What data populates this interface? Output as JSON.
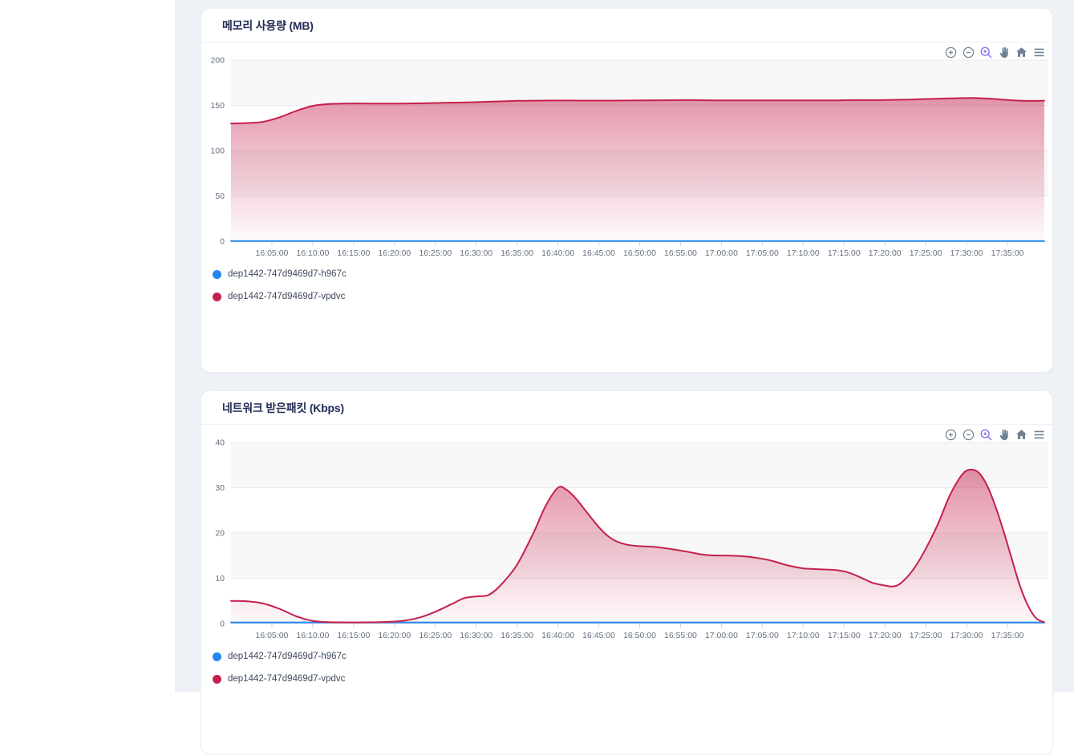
{
  "page": {
    "background": "#eef2f7",
    "left_panel_background": "#ffffff",
    "card_background": "#ffffff",
    "accent_selected_tool": "#8b6fe8",
    "toolbar_icon_color": "#6e8192"
  },
  "charts": [
    {
      "title": "메모리 사용량 (MB)",
      "toolbar_icons": [
        "zoom-in-icon",
        "zoom-out-icon",
        "selection-zoom-icon",
        "pan-icon",
        "home-icon",
        "menu-icon"
      ],
      "selected_tool": "selection-zoom",
      "chart_data": {
        "type": "area",
        "title": "메모리 사용량 (MB)",
        "xlabel": "",
        "ylabel": "",
        "x_unit": "minutes after 16:00:00",
        "x_range_minutes": [
          0,
          100
        ],
        "x_tick_minutes": [
          5,
          10,
          15,
          20,
          25,
          30,
          35,
          40,
          45,
          50,
          55,
          60,
          65,
          70,
          75,
          80,
          85,
          90,
          95
        ],
        "x_tick_labels": [
          "16:05:00",
          "16:10:00",
          "16:15:00",
          "16:20:00",
          "16:25:00",
          "16:30:00",
          "16:35:00",
          "16:40:00",
          "16:45:00",
          "16:50:00",
          "16:55:00",
          "17:00:00",
          "17:05:00",
          "17:10:00",
          "17:15:00",
          "17:20:00",
          "17:25:00",
          "17:30:00",
          "17:35:00"
        ],
        "ylim": [
          0,
          200
        ],
        "y_ticks": [
          0,
          50,
          100,
          150,
          200
        ],
        "grid_row_colors": [
          "#f8f8f8",
          "#ffffff"
        ],
        "gridline_color": "#e9eaed",
        "legend_position": "bottom-left",
        "series": [
          {
            "name": "dep1442-747d9469d7-h967c",
            "color": "#2287f0",
            "fill": false,
            "points": [
              [
                0,
                0.3
              ],
              [
                99.5,
                0.3
              ]
            ]
          },
          {
            "name": "dep1442-747d9469d7-vpdvc",
            "color": "#c5204c",
            "fill": true,
            "points": [
              [
                0,
                130
              ],
              [
                2,
                130.5
              ],
              [
                4,
                132
              ],
              [
                6,
                137
              ],
              [
                8,
                144
              ],
              [
                10,
                149.5
              ],
              [
                12,
                151.5
              ],
              [
                14,
                152
              ],
              [
                17,
                152
              ],
              [
                20,
                152
              ],
              [
                23,
                152.3
              ],
              [
                26,
                152.8
              ],
              [
                29,
                153.3
              ],
              [
                32,
                154.2
              ],
              [
                35,
                155
              ],
              [
                38,
                155.3
              ],
              [
                41,
                155.4
              ],
              [
                44,
                155.3
              ],
              [
                47,
                155.3
              ],
              [
                50,
                155.5
              ],
              [
                53,
                155.7
              ],
              [
                56,
                155.8
              ],
              [
                59,
                155.6
              ],
              [
                62,
                155.5
              ],
              [
                65,
                155.5
              ],
              [
                68,
                155.5
              ],
              [
                71,
                155.6
              ],
              [
                74,
                155.6
              ],
              [
                77,
                155.8
              ],
              [
                80,
                156
              ],
              [
                83,
                156.5
              ],
              [
                86,
                157.3
              ],
              [
                89,
                158
              ],
              [
                91,
                158.1
              ],
              [
                93,
                157.3
              ],
              [
                95,
                156
              ],
              [
                97,
                155
              ],
              [
                99.5,
                155.2
              ]
            ]
          }
        ]
      }
    },
    {
      "title": "네트워크 받은패킷 (Kbps)",
      "toolbar_icons": [
        "zoom-in-icon",
        "zoom-out-icon",
        "selection-zoom-icon",
        "pan-icon",
        "home-icon",
        "menu-icon"
      ],
      "selected_tool": "selection-zoom",
      "chart_data": {
        "type": "area",
        "title": "네트워크 받은패킷 (Kbps)",
        "xlabel": "",
        "ylabel": "",
        "x_unit": "minutes after 16:00:00",
        "x_range_minutes": [
          0,
          100
        ],
        "x_tick_minutes": [
          5,
          10,
          15,
          20,
          25,
          30,
          35,
          40,
          45,
          50,
          55,
          60,
          65,
          70,
          75,
          80,
          85,
          90,
          95
        ],
        "x_tick_labels": [
          "16:05:00",
          "16:10:00",
          "16:15:00",
          "16:20:00",
          "16:25:00",
          "16:30:00",
          "16:35:00",
          "16:40:00",
          "16:45:00",
          "16:50:00",
          "16:55:00",
          "17:00:00",
          "17:05:00",
          "17:10:00",
          "17:15:00",
          "17:20:00",
          "17:25:00",
          "17:30:00",
          "17:35:00"
        ],
        "ylim": [
          0,
          40
        ],
        "y_ticks": [
          0,
          10,
          20,
          30,
          40
        ],
        "grid_row_colors": [
          "#f8f8f8",
          "#ffffff"
        ],
        "gridline_color": "#e9eaed",
        "legend_position": "bottom-left",
        "series": [
          {
            "name": "dep1442-747d9469d7-h967c",
            "color": "#2287f0",
            "fill": false,
            "points": [
              [
                0,
                0.25
              ],
              [
                99.5,
                0.25
              ]
            ]
          },
          {
            "name": "dep1442-747d9469d7-vpdvc",
            "color": "#c5204c",
            "fill": true,
            "points": [
              [
                0,
                5
              ],
              [
                2,
                4.9
              ],
              [
                4,
                4.4
              ],
              [
                6,
                3.2
              ],
              [
                8,
                1.6
              ],
              [
                10,
                0.6
              ],
              [
                12,
                0.3
              ],
              [
                15,
                0.25
              ],
              [
                18,
                0.3
              ],
              [
                21,
                0.6
              ],
              [
                23,
                1.3
              ],
              [
                25,
                2.6
              ],
              [
                27,
                4.3
              ],
              [
                28.5,
                5.6
              ],
              [
                30,
                6
              ],
              [
                31.5,
                6.3
              ],
              [
                33,
                8.5
              ],
              [
                35,
                13
              ],
              [
                37,
                20
              ],
              [
                38.5,
                26
              ],
              [
                40,
                30
              ],
              [
                41,
                29.6
              ],
              [
                42,
                28
              ],
              [
                43,
                25.8
              ],
              [
                44,
                23.5
              ],
              [
                45,
                21.3
              ],
              [
                46,
                19.5
              ],
              [
                47,
                18.3
              ],
              [
                48.5,
                17.4
              ],
              [
                50,
                17.1
              ],
              [
                52,
                16.9
              ],
              [
                54,
                16.4
              ],
              [
                56,
                15.8
              ],
              [
                57.5,
                15.3
              ],
              [
                59,
                15.05
              ],
              [
                61,
                15
              ],
              [
                63,
                14.8
              ],
              [
                65,
                14.3
              ],
              [
                66.5,
                13.7
              ],
              [
                68,
                12.9
              ],
              [
                70,
                12.2
              ],
              [
                72,
                12
              ],
              [
                74,
                11.8
              ],
              [
                75.5,
                11.3
              ],
              [
                77,
                10.2
              ],
              [
                78.5,
                9
              ],
              [
                80,
                8.4
              ],
              [
                81,
                8.2
              ],
              [
                82,
                9
              ],
              [
                83.5,
                12
              ],
              [
                85,
                16.5
              ],
              [
                86.5,
                22
              ],
              [
                88,
                28.5
              ],
              [
                89.5,
                33
              ],
              [
                90.5,
                34
              ],
              [
                91.5,
                33.3
              ],
              [
                92.5,
                30.5
              ],
              [
                93.5,
                26
              ],
              [
                94.5,
                20.5
              ],
              [
                95.5,
                14.5
              ],
              [
                96.5,
                8.5
              ],
              [
                97.5,
                4
              ],
              [
                98.5,
                1.2
              ],
              [
                99.5,
                0.3
              ]
            ]
          }
        ]
      }
    }
  ]
}
